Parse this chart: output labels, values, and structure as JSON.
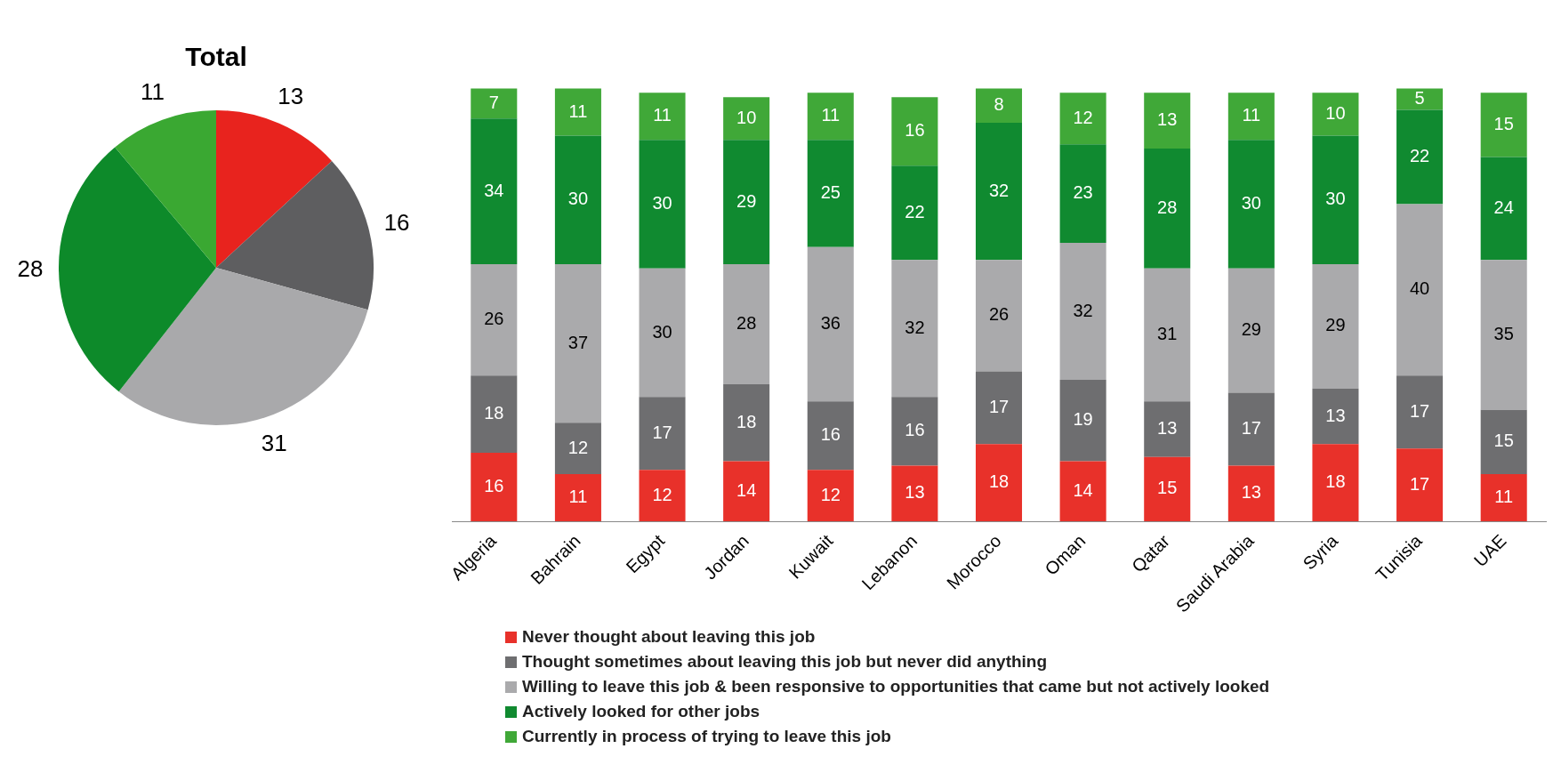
{
  "chart_data": [
    {
      "type": "pie",
      "title": "Total",
      "categories": [
        null,
        null,
        null,
        null,
        null
      ],
      "values": [
        13,
        16,
        31,
        28,
        11
      ],
      "colors": [
        "#e8231e",
        "#5e5e60",
        "#a9a9ab",
        "#0d8a2a",
        "#3aa832"
      ],
      "data_labels": true,
      "legend": false
    },
    {
      "type": "bar",
      "stacked": true,
      "data_labels": true,
      "tick_labels": "x",
      "legend": "bottom",
      "grid": false,
      "categories": [
        "Algeria",
        "Bahrain",
        "Egypt",
        "Jordan",
        "Kuwait",
        "Lebanon",
        "Morocco",
        "Oman",
        "Qatar",
        "Saudi Arabia",
        "Syria",
        "Tunisia",
        "UAE"
      ],
      "series": [
        {
          "name": "Never thought about leaving this job",
          "color": "#e8312a",
          "values": [
            16,
            11,
            12,
            14,
            12,
            13,
            18,
            14,
            15,
            13,
            18,
            17,
            11
          ]
        },
        {
          "name": "Thought sometimes about leaving this job but never did anything",
          "color": "#6e6e70",
          "values": [
            18,
            12,
            17,
            18,
            16,
            16,
            17,
            19,
            13,
            17,
            13,
            17,
            15
          ]
        },
        {
          "name": "Willing to leave this job & been responsive to opportunities that came but not actively looked",
          "color": "#aaaaac",
          "values": [
            26,
            37,
            30,
            28,
            36,
            32,
            26,
            32,
            31,
            29,
            29,
            40,
            35
          ]
        },
        {
          "name": "Actively looked for other jobs",
          "color": "#108a30",
          "values": [
            34,
            30,
            30,
            29,
            25,
            22,
            32,
            23,
            28,
            30,
            30,
            22,
            24
          ]
        },
        {
          "name": "Currently in process of trying to leave this job",
          "color": "#40a838",
          "values": [
            7,
            11,
            11,
            10,
            11,
            16,
            8,
            12,
            13,
            11,
            10,
            5,
            15
          ]
        }
      ]
    }
  ]
}
